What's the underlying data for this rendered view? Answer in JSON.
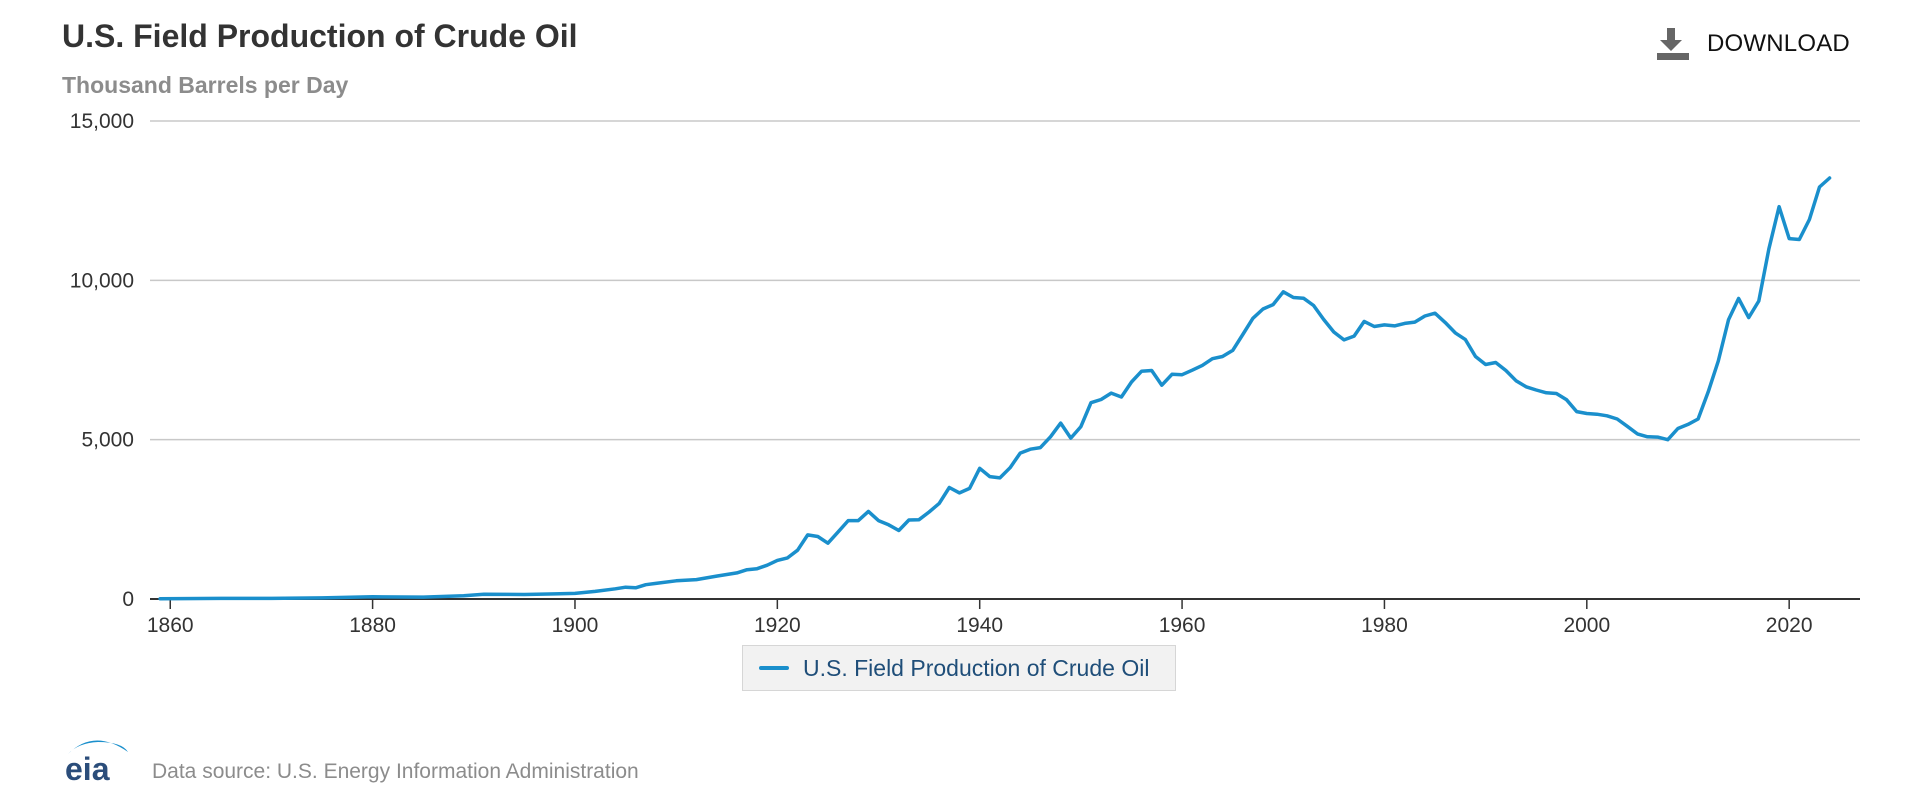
{
  "header": {
    "title": "U.S. Field Production of Crude Oil",
    "subtitle": "Thousand Barrels per Day"
  },
  "toolbar": {
    "download_label": "DOWNLOAD",
    "download_icon": "download-icon"
  },
  "legend": {
    "label": "U.S. Field Production of Crude Oil"
  },
  "footer": {
    "logo_text": "eia",
    "source_text": "Data source: U.S. Energy Information Administration"
  },
  "colors": {
    "series": "#1a8fcc",
    "grid": "#c8c8c8",
    "axis": "#333333",
    "logo_arc": "#1a8fcc",
    "logo_text": "#2b4d7a"
  },
  "chart_data": {
    "type": "line",
    "title": "U.S. Field Production of Crude Oil",
    "subtitle": "Thousand Barrels per Day",
    "xlim": [
      1858,
      2027
    ],
    "ylim": [
      0,
      15000
    ],
    "x_ticks": [
      1860,
      1880,
      1900,
      1920,
      1940,
      1960,
      1980,
      2000,
      2020
    ],
    "y_ticks": [
      0,
      5000,
      10000,
      15000
    ],
    "x_tick_labels": [
      "1860",
      "1880",
      "1900",
      "1920",
      "1940",
      "1960",
      "1980",
      "2000",
      "2020"
    ],
    "y_tick_labels": [
      "0",
      "5,000",
      "10,000",
      "15,000"
    ],
    "grid": "horizontal",
    "legend_position": "bottom-center",
    "series": [
      {
        "name": "U.S. Field Production of Crude Oil",
        "color": "#1a8fcc",
        "x": [
          1859,
          1865,
          1870,
          1875,
          1880,
          1885,
          1889,
          1891,
          1895,
          1898,
          1900,
          1902,
          1904,
          1905,
          1906,
          1907,
          1908,
          1910,
          1912,
          1914,
          1916,
          1917,
          1918,
          1919,
          1920,
          1921,
          1922,
          1923,
          1924,
          1925,
          1926,
          1927,
          1928,
          1929,
          1930,
          1931,
          1932,
          1933,
          1934,
          1935,
          1936,
          1937,
          1938,
          1939,
          1940,
          1941,
          1942,
          1943,
          1944,
          1945,
          1946,
          1947,
          1948,
          1949,
          1950,
          1951,
          1952,
          1953,
          1954,
          1955,
          1956,
          1957,
          1958,
          1959,
          1960,
          1961,
          1962,
          1963,
          1964,
          1965,
          1966,
          1967,
          1968,
          1969,
          1970,
          1971,
          1972,
          1973,
          1974,
          1975,
          1976,
          1977,
          1978,
          1979,
          1980,
          1981,
          1982,
          1983,
          1984,
          1985,
          1986,
          1987,
          1988,
          1989,
          1990,
          1991,
          1992,
          1993,
          1994,
          1995,
          1996,
          1997,
          1998,
          1999,
          2000,
          2001,
          2002,
          2003,
          2004,
          2005,
          2006,
          2007,
          2008,
          2009,
          2010,
          2011,
          2012,
          2013,
          2014,
          2015,
          2016,
          2017,
          2018,
          2019,
          2020,
          2021,
          2022,
          2023,
          2024
        ],
        "y": [
          5,
          20,
          20,
          35,
          70,
          60,
          100,
          150,
          140,
          160,
          175,
          240,
          320,
          370,
          350,
          450,
          490,
          570,
          610,
          720,
          820,
          920,
          950,
          1060,
          1210,
          1290,
          1530,
          2010,
          1960,
          1750,
          2100,
          2460,
          2460,
          2750,
          2460,
          2330,
          2150,
          2480,
          2490,
          2730,
          3000,
          3500,
          3330,
          3470,
          4100,
          3840,
          3800,
          4120,
          4580,
          4700,
          4750,
          5090,
          5520,
          5050,
          5410,
          6160,
          6260,
          6460,
          6340,
          6810,
          7150,
          7170,
          6710,
          7050,
          7040,
          7180,
          7330,
          7540,
          7610,
          7800,
          8300,
          8810,
          9100,
          9240,
          9640,
          9460,
          9440,
          9210,
          8770,
          8380,
          8130,
          8250,
          8710,
          8550,
          8600,
          8570,
          8650,
          8690,
          8880,
          8970,
          8680,
          8350,
          8140,
          7610,
          7360,
          7420,
          7170,
          6850,
          6660,
          6560,
          6470,
          6450,
          6250,
          5880,
          5820,
          5800,
          5750,
          5650,
          5420,
          5180,
          5090,
          5080,
          5000,
          5350,
          5480,
          5650,
          6500,
          7470,
          8760,
          9430,
          8830,
          9350,
          10990,
          12310,
          11310,
          11280,
          11910,
          12930,
          13210
        ]
      }
    ]
  }
}
